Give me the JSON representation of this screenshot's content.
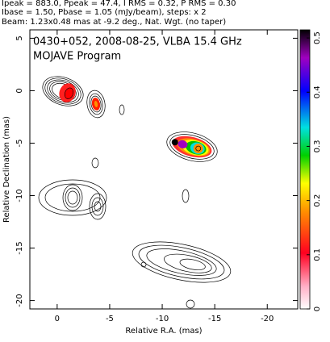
{
  "chart_data": {
    "type": "image",
    "header": [
      "Ipeak = 883.0, Ppeak = 47.4, I RMS = 0.32, P RMS = 0.30",
      "Ibase = 1.50, Pbase = 1.05 (mJy/beam), steps: x 2",
      "Beam: 1.23x0.48 mas at -9.2 deg., Nat. Wgt. (no taper)"
    ],
    "title": "0430+052, 2008-08-25, VLBA 15.4 GHz",
    "annotation": "MOJAVE Program",
    "x_label": "Relative R.A. (mas)",
    "y_label": "Relative Declination (mas)",
    "xlim": [
      2.6,
      -22.9
    ],
    "xticks": [
      0,
      -5,
      -10,
      -15,
      -20
    ],
    "ylim": [
      -20.8,
      5.8
    ],
    "yticks": [
      5,
      0,
      -5,
      -10,
      -15,
      -20
    ],
    "colorbar": {
      "lim": [
        0,
        0.515
      ],
      "ticks": [
        0,
        0.1,
        0.2,
        0.3,
        0.4,
        0.5
      ]
    }
  }
}
